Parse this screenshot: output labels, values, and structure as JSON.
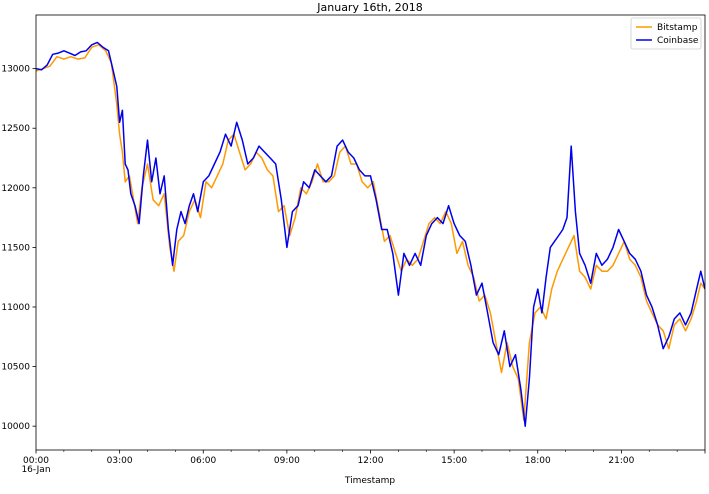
{
  "chart_data": {
    "type": "line",
    "title": "January 16th, 2018",
    "xlabel": "Timestamp",
    "ylabel": "",
    "date": "2018-01-16",
    "x_range_hours": [
      0,
      24
    ],
    "ylim": [
      9800,
      13450
    ],
    "grid": false,
    "legend_position": "top-right",
    "x_ticks": [
      {
        "hour": 0,
        "label": "00:00",
        "sublabel": "16-Jan"
      },
      {
        "hour": 3,
        "label": "03:00"
      },
      {
        "hour": 6,
        "label": "06:00"
      },
      {
        "hour": 9,
        "label": "09:00"
      },
      {
        "hour": 12,
        "label": "12:00"
      },
      {
        "hour": 15,
        "label": "15:00"
      },
      {
        "hour": 18,
        "label": "18:00"
      },
      {
        "hour": 21,
        "label": "21:00"
      }
    ],
    "y_ticks": [
      10000,
      10500,
      11000,
      11500,
      12000,
      12500,
      13000
    ],
    "series": [
      {
        "name": "Bitstamp",
        "color": "#ff9900",
        "points": [
          [
            0.0,
            12980
          ],
          [
            0.25,
            13000
          ],
          [
            0.5,
            13020
          ],
          [
            0.75,
            13100
          ],
          [
            1.0,
            13080
          ],
          [
            1.25,
            13100
          ],
          [
            1.5,
            13080
          ],
          [
            1.75,
            13090
          ],
          [
            2.0,
            13180
          ],
          [
            2.25,
            13200
          ],
          [
            2.5,
            13150
          ],
          [
            2.7,
            13050
          ],
          [
            2.9,
            12700
          ],
          [
            3.0,
            12450
          ],
          [
            3.1,
            12300
          ],
          [
            3.2,
            12050
          ],
          [
            3.35,
            12100
          ],
          [
            3.5,
            11900
          ],
          [
            3.65,
            11700
          ],
          [
            3.8,
            12000
          ],
          [
            4.0,
            12200
          ],
          [
            4.2,
            11900
          ],
          [
            4.4,
            11850
          ],
          [
            4.6,
            11950
          ],
          [
            4.8,
            11500
          ],
          [
            4.95,
            11300
          ],
          [
            5.1,
            11550
          ],
          [
            5.3,
            11600
          ],
          [
            5.5,
            11800
          ],
          [
            5.7,
            11900
          ],
          [
            5.9,
            11750
          ],
          [
            6.1,
            12050
          ],
          [
            6.3,
            12000
          ],
          [
            6.5,
            12100
          ],
          [
            6.7,
            12200
          ],
          [
            6.9,
            12400
          ],
          [
            7.1,
            12450
          ],
          [
            7.3,
            12300
          ],
          [
            7.5,
            12150
          ],
          [
            7.7,
            12200
          ],
          [
            7.9,
            12300
          ],
          [
            8.1,
            12250
          ],
          [
            8.3,
            12150
          ],
          [
            8.5,
            12100
          ],
          [
            8.7,
            11800
          ],
          [
            8.9,
            11850
          ],
          [
            9.1,
            11600
          ],
          [
            9.3,
            11750
          ],
          [
            9.5,
            12000
          ],
          [
            9.7,
            11950
          ],
          [
            9.9,
            12050
          ],
          [
            10.1,
            12200
          ],
          [
            10.3,
            12050
          ],
          [
            10.5,
            12050
          ],
          [
            10.7,
            12100
          ],
          [
            10.9,
            12300
          ],
          [
            11.1,
            12350
          ],
          [
            11.3,
            12200
          ],
          [
            11.5,
            12200
          ],
          [
            11.7,
            12050
          ],
          [
            11.9,
            12000
          ],
          [
            12.1,
            12050
          ],
          [
            12.3,
            11800
          ],
          [
            12.5,
            11550
          ],
          [
            12.7,
            11600
          ],
          [
            12.9,
            11450
          ],
          [
            13.1,
            11300
          ],
          [
            13.3,
            11400
          ],
          [
            13.5,
            11350
          ],
          [
            13.7,
            11400
          ],
          [
            13.9,
            11550
          ],
          [
            14.1,
            11700
          ],
          [
            14.3,
            11750
          ],
          [
            14.5,
            11700
          ],
          [
            14.7,
            11800
          ],
          [
            14.9,
            11700
          ],
          [
            15.1,
            11450
          ],
          [
            15.3,
            11550
          ],
          [
            15.5,
            11350
          ],
          [
            15.7,
            11250
          ],
          [
            15.9,
            11050
          ],
          [
            16.1,
            11100
          ],
          [
            16.3,
            10950
          ],
          [
            16.5,
            10700
          ],
          [
            16.7,
            10450
          ],
          [
            16.9,
            10700
          ],
          [
            17.1,
            10500
          ],
          [
            17.3,
            10400
          ],
          [
            17.5,
            10050
          ],
          [
            17.7,
            10700
          ],
          [
            17.9,
            10950
          ],
          [
            18.1,
            11000
          ],
          [
            18.3,
            10900
          ],
          [
            18.5,
            11150
          ],
          [
            18.7,
            11300
          ],
          [
            18.9,
            11400
          ],
          [
            19.1,
            11500
          ],
          [
            19.3,
            11600
          ],
          [
            19.5,
            11300
          ],
          [
            19.7,
            11250
          ],
          [
            19.9,
            11150
          ],
          [
            20.1,
            11350
          ],
          [
            20.3,
            11300
          ],
          [
            20.5,
            11300
          ],
          [
            20.7,
            11350
          ],
          [
            20.9,
            11450
          ],
          [
            21.1,
            11550
          ],
          [
            21.3,
            11400
          ],
          [
            21.5,
            11350
          ],
          [
            21.7,
            11250
          ],
          [
            21.9,
            11050
          ],
          [
            22.1,
            10950
          ],
          [
            22.3,
            10850
          ],
          [
            22.5,
            10800
          ],
          [
            22.7,
            10650
          ],
          [
            22.9,
            10850
          ],
          [
            23.1,
            10900
          ],
          [
            23.3,
            10800
          ],
          [
            23.5,
            10900
          ],
          [
            23.7,
            11050
          ],
          [
            23.85,
            11200
          ],
          [
            24.0,
            11150
          ]
        ]
      },
      {
        "name": "Coinbase",
        "color": "#0000ee",
        "points": [
          [
            0.0,
            13000
          ],
          [
            0.2,
            12990
          ],
          [
            0.4,
            13030
          ],
          [
            0.6,
            13120
          ],
          [
            0.8,
            13130
          ],
          [
            1.0,
            13150
          ],
          [
            1.2,
            13130
          ],
          [
            1.4,
            13110
          ],
          [
            1.6,
            13140
          ],
          [
            1.8,
            13150
          ],
          [
            2.0,
            13200
          ],
          [
            2.2,
            13220
          ],
          [
            2.4,
            13180
          ],
          [
            2.6,
            13150
          ],
          [
            2.75,
            13000
          ],
          [
            2.9,
            12850
          ],
          [
            3.0,
            12550
          ],
          [
            3.1,
            12650
          ],
          [
            3.2,
            12200
          ],
          [
            3.3,
            12150
          ],
          [
            3.4,
            11950
          ],
          [
            3.55,
            11850
          ],
          [
            3.7,
            11700
          ],
          [
            3.85,
            12100
          ],
          [
            4.0,
            12400
          ],
          [
            4.15,
            12050
          ],
          [
            4.3,
            12250
          ],
          [
            4.45,
            11950
          ],
          [
            4.6,
            12100
          ],
          [
            4.75,
            11650
          ],
          [
            4.9,
            11350
          ],
          [
            5.05,
            11650
          ],
          [
            5.2,
            11800
          ],
          [
            5.35,
            11700
          ],
          [
            5.5,
            11850
          ],
          [
            5.65,
            11950
          ],
          [
            5.8,
            11800
          ],
          [
            6.0,
            12050
          ],
          [
            6.2,
            12100
          ],
          [
            6.4,
            12200
          ],
          [
            6.6,
            12300
          ],
          [
            6.8,
            12450
          ],
          [
            7.0,
            12350
          ],
          [
            7.2,
            12550
          ],
          [
            7.4,
            12400
          ],
          [
            7.6,
            12200
          ],
          [
            7.8,
            12250
          ],
          [
            8.0,
            12350
          ],
          [
            8.2,
            12300
          ],
          [
            8.4,
            12250
          ],
          [
            8.6,
            12200
          ],
          [
            8.8,
            11900
          ],
          [
            9.0,
            11500
          ],
          [
            9.2,
            11800
          ],
          [
            9.4,
            11850
          ],
          [
            9.6,
            12050
          ],
          [
            9.8,
            12000
          ],
          [
            10.0,
            12150
          ],
          [
            10.2,
            12100
          ],
          [
            10.4,
            12050
          ],
          [
            10.6,
            12100
          ],
          [
            10.8,
            12350
          ],
          [
            11.0,
            12400
          ],
          [
            11.2,
            12300
          ],
          [
            11.4,
            12250
          ],
          [
            11.6,
            12150
          ],
          [
            11.8,
            12100
          ],
          [
            12.0,
            12100
          ],
          [
            12.2,
            11900
          ],
          [
            12.4,
            11650
          ],
          [
            12.6,
            11650
          ],
          [
            12.8,
            11450
          ],
          [
            13.0,
            11100
          ],
          [
            13.2,
            11450
          ],
          [
            13.4,
            11350
          ],
          [
            13.6,
            11450
          ],
          [
            13.8,
            11350
          ],
          [
            14.0,
            11600
          ],
          [
            14.2,
            11700
          ],
          [
            14.4,
            11750
          ],
          [
            14.6,
            11700
          ],
          [
            14.8,
            11850
          ],
          [
            15.0,
            11700
          ],
          [
            15.2,
            11600
          ],
          [
            15.4,
            11550
          ],
          [
            15.6,
            11350
          ],
          [
            15.8,
            11100
          ],
          [
            16.0,
            11200
          ],
          [
            16.2,
            10950
          ],
          [
            16.4,
            10700
          ],
          [
            16.6,
            10600
          ],
          [
            16.8,
            10800
          ],
          [
            17.0,
            10500
          ],
          [
            17.2,
            10600
          ],
          [
            17.4,
            10300
          ],
          [
            17.55,
            10000
          ],
          [
            17.7,
            10400
          ],
          [
            17.85,
            11000
          ],
          [
            18.0,
            11150
          ],
          [
            18.15,
            10950
          ],
          [
            18.3,
            11250
          ],
          [
            18.45,
            11500
          ],
          [
            18.6,
            11550
          ],
          [
            18.75,
            11600
          ],
          [
            18.9,
            11650
          ],
          [
            19.05,
            11750
          ],
          [
            19.2,
            12350
          ],
          [
            19.35,
            11800
          ],
          [
            19.5,
            11450
          ],
          [
            19.7,
            11350
          ],
          [
            19.9,
            11200
          ],
          [
            20.1,
            11450
          ],
          [
            20.3,
            11350
          ],
          [
            20.5,
            11400
          ],
          [
            20.7,
            11500
          ],
          [
            20.9,
            11650
          ],
          [
            21.1,
            11550
          ],
          [
            21.3,
            11450
          ],
          [
            21.5,
            11400
          ],
          [
            21.7,
            11300
          ],
          [
            21.9,
            11100
          ],
          [
            22.1,
            11000
          ],
          [
            22.3,
            10850
          ],
          [
            22.5,
            10650
          ],
          [
            22.7,
            10750
          ],
          [
            22.9,
            10900
          ],
          [
            23.1,
            10950
          ],
          [
            23.3,
            10850
          ],
          [
            23.5,
            10950
          ],
          [
            23.7,
            11150
          ],
          [
            23.85,
            11300
          ],
          [
            24.0,
            11150
          ]
        ]
      }
    ]
  }
}
